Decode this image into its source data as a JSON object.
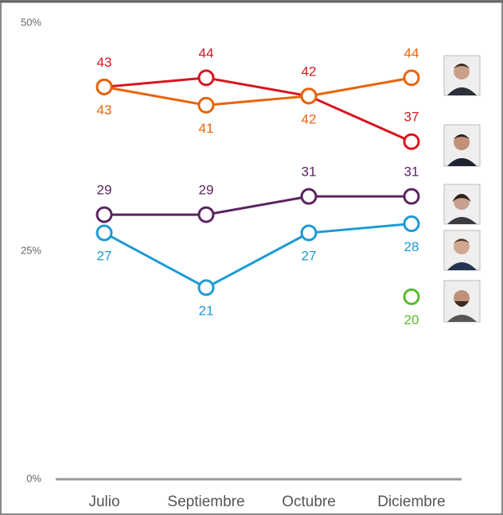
{
  "chart_data": {
    "type": "line",
    "categories": [
      "Julio",
      "Septiembre",
      "Octubre",
      "Diciembre"
    ],
    "series": [
      {
        "color": "#d9141f",
        "values": [
          43,
          44,
          42,
          37
        ]
      },
      {
        "color": "#e8640c",
        "values": [
          43,
          41,
          42,
          44
        ]
      },
      {
        "color": "#5b2360",
        "values": [
          29,
          29,
          31,
          31
        ]
      },
      {
        "color": "#1c9ad6",
        "values": [
          27,
          21,
          27,
          28
        ]
      },
      {
        "color": "#5ab92e",
        "values": [
          null,
          null,
          null,
          20
        ]
      }
    ],
    "ylim": [
      0,
      50
    ],
    "yticks": [
      {
        "value": 0,
        "label": "0%"
      },
      {
        "value": 25,
        "label": "25%"
      },
      {
        "value": 50,
        "label": "50%"
      }
    ]
  }
}
